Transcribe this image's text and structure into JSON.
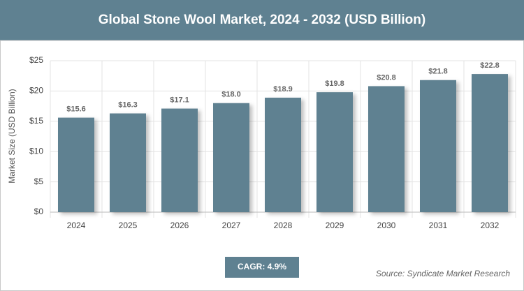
{
  "chart_data": {
    "type": "bar",
    "title": "Global Stone Wool Market, 2024 - 2032 (USD Billion)",
    "y_axis_label": "Market Size (USD Billion)",
    "categories": [
      "2024",
      "2025",
      "2026",
      "2027",
      "2028",
      "2029",
      "2030",
      "2031",
      "2032"
    ],
    "values": [
      15.6,
      16.3,
      17.1,
      18.0,
      18.9,
      19.8,
      20.8,
      21.8,
      22.8
    ],
    "value_labels": [
      "$15.6",
      "$16.3",
      "$17.1",
      "$18.0",
      "$18.9",
      "$19.8",
      "$20.8",
      "$21.8",
      "$22.8"
    ],
    "color": "#5f8191",
    "ylim": [
      0,
      25
    ],
    "yticks": [
      {
        "value": 0,
        "label": "$0"
      },
      {
        "value": 5,
        "label": "$5"
      },
      {
        "value": 10,
        "label": "$10"
      },
      {
        "value": 15,
        "label": "$15"
      },
      {
        "value": 20,
        "label": "$20"
      },
      {
        "value": 25,
        "label": "$25"
      }
    ],
    "grid": true,
    "cagr": "CAGR: 4.9%",
    "source": "Source: Syndicate Market Research"
  }
}
